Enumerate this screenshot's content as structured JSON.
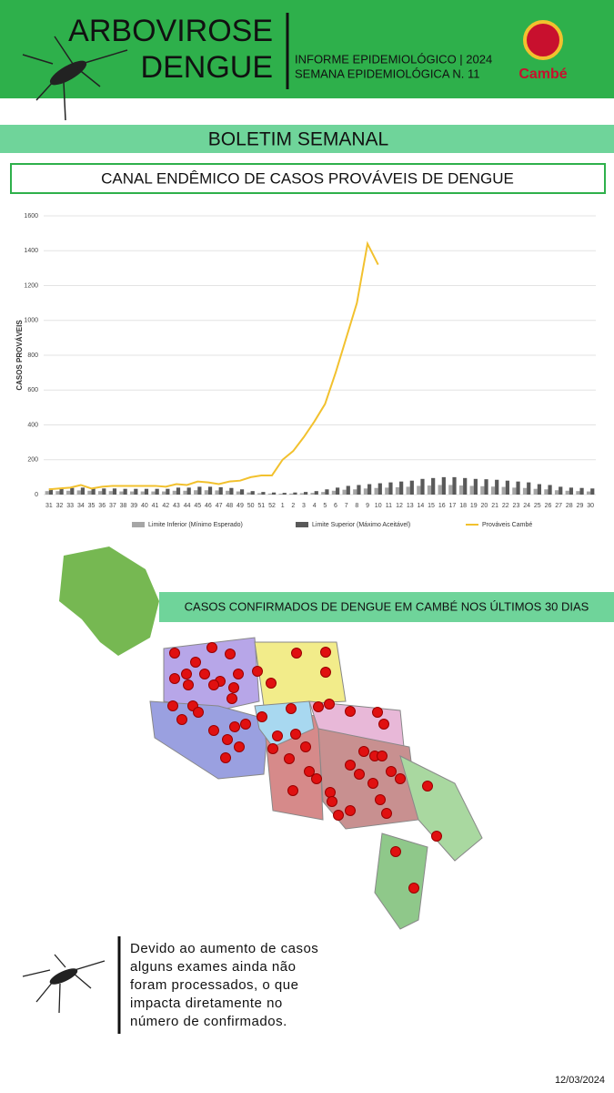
{
  "header": {
    "title_line1": "ARBOVIROSE",
    "title_line2": "DENGUE",
    "info_line1": "INFORME EPIDEMIOLÓGICO | 2024",
    "info_line2": "SEMANA EPIDEMIOLÓGICA  N. 11",
    "logo": "Cambé"
  },
  "banner": "BOLETIM SEMANAL",
  "chart_data": {
    "type": "line-bar",
    "title": "CANAL ENDÊMICO DE CASOS PROVÁVEIS DE DENGUE",
    "y_label": "CASOS PROVÁVEIS",
    "categories": [
      "31",
      "32",
      "33",
      "34",
      "35",
      "36",
      "37",
      "38",
      "39",
      "40",
      "41",
      "42",
      "43",
      "44",
      "45",
      "46",
      "47",
      "48",
      "49",
      "50",
      "51",
      "52",
      "1",
      "2",
      "3",
      "4",
      "5",
      "6",
      "7",
      "8",
      "9",
      "10",
      "11",
      "12",
      "13",
      "14",
      "15",
      "16",
      "17",
      "18",
      "19",
      "20",
      "21",
      "22",
      "23",
      "24",
      "25",
      "26",
      "27",
      "28",
      "29",
      "30"
    ],
    "series": [
      {
        "name": "Limite Inferior (Mínimo Esperado)",
        "kind": "bar",
        "color": "#a6a6a6",
        "values": [
          20,
          20,
          22,
          24,
          22,
          20,
          20,
          18,
          18,
          18,
          18,
          18,
          22,
          22,
          25,
          25,
          24,
          22,
          18,
          12,
          8,
          6,
          5,
          6,
          8,
          10,
          15,
          22,
          28,
          30,
          35,
          38,
          40,
          42,
          45,
          50,
          52,
          55,
          55,
          52,
          50,
          48,
          46,
          44,
          40,
          38,
          33,
          30,
          25,
          22,
          20,
          18
        ]
      },
      {
        "name": "Limite Superior (Máximo Aceitável)",
        "kind": "bar",
        "color": "#595959",
        "values": [
          35,
          35,
          38,
          40,
          38,
          35,
          35,
          33,
          33,
          33,
          33,
          33,
          40,
          40,
          45,
          45,
          42,
          38,
          30,
          20,
          15,
          12,
          10,
          12,
          15,
          20,
          30,
          40,
          50,
          55,
          60,
          65,
          70,
          75,
          80,
          90,
          95,
          100,
          100,
          95,
          90,
          88,
          85,
          80,
          75,
          70,
          60,
          55,
          45,
          40,
          38,
          35
        ]
      },
      {
        "name": "Prováveis Cambé",
        "kind": "line",
        "color": "#f2c12e",
        "values": [
          30,
          35,
          40,
          55,
          35,
          45,
          50,
          50,
          50,
          50,
          50,
          45,
          60,
          55,
          75,
          70,
          60,
          75,
          80,
          100,
          110,
          110,
          200,
          250,
          330,
          420,
          520,
          700,
          900,
          1100,
          1440,
          1320,
          null,
          null,
          null,
          null,
          null,
          null,
          null,
          null,
          null,
          null,
          null,
          null,
          null,
          null,
          null,
          null,
          null,
          null,
          null,
          null
        ]
      }
    ],
    "ylim": [
      0,
      1600
    ],
    "yticks": [
      0,
      200,
      400,
      600,
      800,
      1000,
      1200,
      1400,
      1600
    ],
    "grid": true,
    "legend": "bottom"
  },
  "map_title": "CASOS CONFIRMADOS DE DENGUE EM CAMBÉ NOS ÚLTIMOS 30 DIAS",
  "note": [
    "Devido ao aumento de casos",
    "alguns exames ainda não",
    "foram processados, o que",
    "impacta diretamente no",
    "número de confirmados."
  ],
  "date": "12/03/2024"
}
